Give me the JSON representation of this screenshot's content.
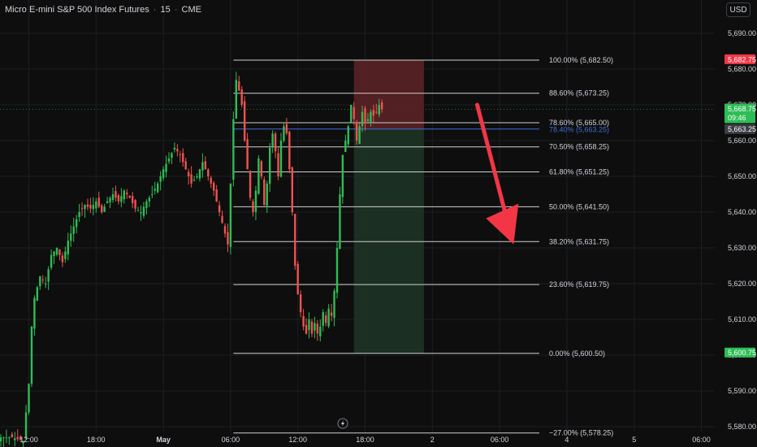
{
  "header": {
    "symbol": "Micro E-mini S&P 500 Index Futures",
    "interval": "15",
    "exchange": "CME",
    "separator": "·"
  },
  "currency_button": "USD",
  "colors": {
    "background": "#0e0e0e",
    "up": "#26a69a",
    "up_bright": "#2ebd55",
    "down": "#ef5350",
    "grid": "#1c1e24",
    "fib_line": "#cfcfcf",
    "stop_zone": "#5a2125",
    "target_zone": "#1c3324",
    "arrow": "#f23645",
    "blue_line": "#3f6cd9",
    "price_label_green": "#2ebd55",
    "price_label_red": "#f23645",
    "entry_label": "#3a3d45"
  },
  "chart_data": {
    "type": "candlestick",
    "y_axis": {
      "range": [
        5576,
        5698
      ],
      "ticks": [
        "5,690.00",
        "5,680.00",
        "5,670.00",
        "5,660.00",
        "5,650.00",
        "5,640.00",
        "5,630.00",
        "5,620.00",
        "5,610.00",
        "5,600.00",
        "5,590.00",
        "5,580.00"
      ],
      "tick_values": [
        5690,
        5680,
        5670,
        5660,
        5650,
        5640,
        5630,
        5620,
        5610,
        5600,
        5590,
        5580
      ]
    },
    "x_axis": {
      "ticks": [
        {
          "label": "06:00",
          "bar": -74
        },
        {
          "label": "12:00",
          "bar": -50
        },
        {
          "label": "18:00",
          "bar": -26
        },
        {
          "label": "May",
          "bar": -2
        },
        {
          "label": "06:00",
          "bar": 22
        },
        {
          "label": "12:00",
          "bar": 46
        },
        {
          "label": "18:00",
          "bar": 70
        },
        {
          "label": "2",
          "bar": 94
        },
        {
          "label": "06:00",
          "bar": 118
        },
        {
          "label": "4",
          "bar": 142
        },
        {
          "label": "5",
          "bar": 166
        },
        {
          "label": "06:00",
          "bar": 190
        },
        {
          "label": "12:00",
          "bar": 214
        },
        {
          "label": "18:00",
          "bar": 238
        }
      ]
    },
    "price_path": [
      {
        "bar": -90,
        "price": 5579
      },
      {
        "bar": -88,
        "price": 5580
      },
      {
        "bar": -86,
        "price": 5578
      },
      {
        "bar": -84,
        "price": 5579
      },
      {
        "bar": -82,
        "price": 5578
      },
      {
        "bar": -80,
        "price": 5577
      },
      {
        "bar": -78,
        "price": 5577
      },
      {
        "bar": -76,
        "price": 5578
      },
      {
        "bar": -72,
        "price": 5577
      },
      {
        "bar": -64,
        "price": 5577
      },
      {
        "bar": -60,
        "price": 5577
      },
      {
        "bar": -56,
        "price": 5577
      },
      {
        "bar": -52,
        "price": 5576
      },
      {
        "bar": -50,
        "price": 5592
      },
      {
        "bar": -49,
        "price": 5608
      },
      {
        "bar": -48,
        "price": 5616
      },
      {
        "bar": -46,
        "price": 5622
      },
      {
        "bar": -44,
        "price": 5620
      },
      {
        "bar": -42,
        "price": 5628
      },
      {
        "bar": -40,
        "price": 5630
      },
      {
        "bar": -38,
        "price": 5626
      },
      {
        "bar": -36,
        "price": 5632
      },
      {
        "bar": -34,
        "price": 5636
      },
      {
        "bar": -32,
        "price": 5640
      },
      {
        "bar": -30,
        "price": 5642
      },
      {
        "bar": -28,
        "price": 5641
      },
      {
        "bar": -26,
        "price": 5643
      },
      {
        "bar": -24,
        "price": 5640
      },
      {
        "bar": -22,
        "price": 5643
      },
      {
        "bar": -20,
        "price": 5645
      },
      {
        "bar": -18,
        "price": 5643
      },
      {
        "bar": -16,
        "price": 5646
      },
      {
        "bar": -14,
        "price": 5644
      },
      {
        "bar": -12,
        "price": 5641
      },
      {
        "bar": -10,
        "price": 5640
      },
      {
        "bar": -8,
        "price": 5643
      },
      {
        "bar": -6,
        "price": 5645
      },
      {
        "bar": -4,
        "price": 5648
      },
      {
        "bar": -2,
        "price": 5652
      },
      {
        "bar": 0,
        "price": 5655
      },
      {
        "bar": 2,
        "price": 5658
      },
      {
        "bar": 4,
        "price": 5656
      },
      {
        "bar": 6,
        "price": 5652
      },
      {
        "bar": 8,
        "price": 5648
      },
      {
        "bar": 10,
        "price": 5650
      },
      {
        "bar": 12,
        "price": 5654
      },
      {
        "bar": 14,
        "price": 5650
      },
      {
        "bar": 16,
        "price": 5646
      },
      {
        "bar": 18,
        "price": 5640
      },
      {
        "bar": 20,
        "price": 5634
      },
      {
        "bar": 21,
        "price": 5631
      },
      {
        "bar": 22,
        "price": 5648
      },
      {
        "bar": 23,
        "price": 5666
      },
      {
        "bar": 24,
        "price": 5677
      },
      {
        "bar": 25,
        "price": 5674
      },
      {
        "bar": 26,
        "price": 5670
      },
      {
        "bar": 27,
        "price": 5660
      },
      {
        "bar": 28,
        "price": 5652
      },
      {
        "bar": 29,
        "price": 5644
      },
      {
        "bar": 30,
        "price": 5640
      },
      {
        "bar": 31,
        "price": 5646
      },
      {
        "bar": 32,
        "price": 5655
      },
      {
        "bar": 33,
        "price": 5650
      },
      {
        "bar": 34,
        "price": 5642
      },
      {
        "bar": 35,
        "price": 5648
      },
      {
        "bar": 36,
        "price": 5658
      },
      {
        "bar": 37,
        "price": 5662
      },
      {
        "bar": 38,
        "price": 5657
      },
      {
        "bar": 39,
        "price": 5650
      },
      {
        "bar": 40,
        "price": 5660
      },
      {
        "bar": 41,
        "price": 5664
      },
      {
        "bar": 42,
        "price": 5662
      },
      {
        "bar": 43,
        "price": 5652
      },
      {
        "bar": 44,
        "price": 5640
      },
      {
        "bar": 45,
        "price": 5625
      },
      {
        "bar": 46,
        "price": 5617
      },
      {
        "bar": 47,
        "price": 5612
      },
      {
        "bar": 48,
        "price": 5608
      },
      {
        "bar": 49,
        "price": 5606
      },
      {
        "bar": 50,
        "price": 5610
      },
      {
        "bar": 51,
        "price": 5606
      },
      {
        "bar": 52,
        "price": 5609
      },
      {
        "bar": 53,
        "price": 5606
      },
      {
        "bar": 54,
        "price": 5608
      },
      {
        "bar": 55,
        "price": 5612
      },
      {
        "bar": 56,
        "price": 5609
      },
      {
        "bar": 57,
        "price": 5613
      },
      {
        "bar": 58,
        "price": 5611
      },
      {
        "bar": 59,
        "price": 5618
      },
      {
        "bar": 60,
        "price": 5630
      },
      {
        "bar": 61,
        "price": 5645
      },
      {
        "bar": 62,
        "price": 5656
      },
      {
        "bar": 63,
        "price": 5660
      },
      {
        "bar": 64,
        "price": 5664
      },
      {
        "bar": 65,
        "price": 5670
      },
      {
        "bar": 66,
        "price": 5666
      },
      {
        "bar": 67,
        "price": 5660
      },
      {
        "bar": 68,
        "price": 5664
      },
      {
        "bar": 69,
        "price": 5668
      },
      {
        "bar": 70,
        "price": 5665
      },
      {
        "bar": 71,
        "price": 5666
      },
      {
        "bar": 72,
        "price": 5668
      },
      {
        "bar": 73,
        "price": 5667
      },
      {
        "bar": 74,
        "price": 5668
      },
      {
        "bar": 75,
        "price": 5670
      },
      {
        "bar": 76,
        "price": 5668.75
      }
    ],
    "fib_levels": [
      {
        "label": "100.00% (5,682.50)",
        "price": 5682.5
      },
      {
        "label": "88.60% (5,673.25)",
        "price": 5673.25
      },
      {
        "label": "78.60% (5,665.00)",
        "price": 5665.0
      },
      {
        "label": "70.50% (5,658.25)",
        "price": 5658.25
      },
      {
        "label": "61.80% (5,651.25)",
        "price": 5651.25
      },
      {
        "label": "50.00% (5,641.50)",
        "price": 5641.5
      },
      {
        "label": "38.20% (5,631.75)",
        "price": 5631.75
      },
      {
        "label": "23.60% (5,619.75)",
        "price": 5619.75
      },
      {
        "label": "0.00% (5,600.50)",
        "price": 5600.5
      },
      {
        "label": "−27.00% (5,578.25)",
        "price": 5578.25
      }
    ],
    "fib_start_bar": 23,
    "blue_level": {
      "label": "78.40% (5,663.25)",
      "price": 5663.25
    },
    "position": {
      "type": "short",
      "entry": 5663.25,
      "stop": 5682.5,
      "target": 5600.5,
      "start_bar": 66,
      "end_bar": 91
    },
    "arrow": {
      "from_bar": 110,
      "from_price": 5670,
      "to_bar": 123,
      "to_price": 5631
    },
    "price_labels": [
      {
        "label": "5,682.75",
        "price": 5682.75,
        "kind": "red"
      },
      {
        "label": "5,668.75",
        "sub": "09:46",
        "price": 5668.75,
        "kind": "green"
      },
      {
        "label": "5,663.25",
        "price": 5663.25,
        "kind": "entry"
      },
      {
        "label": "5,600.75",
        "price": 5600.75,
        "kind": "green"
      }
    ],
    "current_price": 5668.75
  }
}
